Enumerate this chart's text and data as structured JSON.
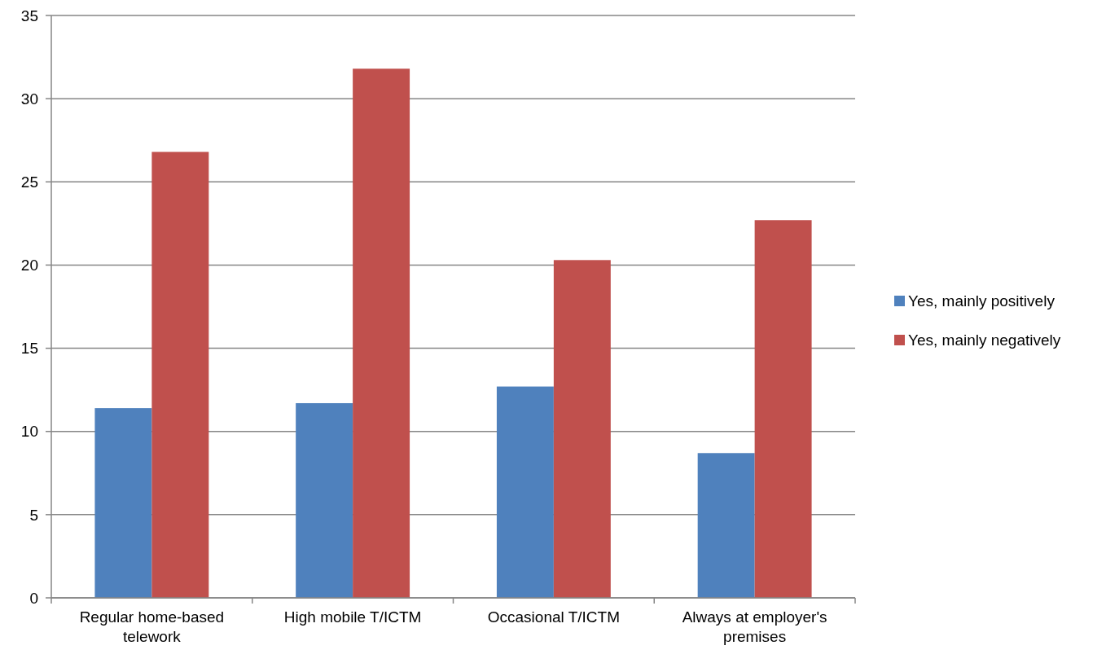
{
  "chart_data": {
    "type": "bar",
    "categories": [
      "Regular home-based telework",
      "High mobile T/ICTM",
      "Occasional T/ICTM",
      "Always at employer's premises"
    ],
    "series": [
      {
        "name": "Yes, mainly positively",
        "color": "#4f81bd",
        "values": [
          11.4,
          11.7,
          12.7,
          8.7
        ]
      },
      {
        "name": "Yes, mainly negatively",
        "color": "#c0504d",
        "values": [
          26.8,
          31.8,
          20.3,
          22.7
        ]
      }
    ],
    "ylim": [
      0,
      35
    ],
    "yticks": [
      0,
      5,
      10,
      15,
      20,
      25,
      30,
      35
    ],
    "grid": "y",
    "legend": "right"
  }
}
